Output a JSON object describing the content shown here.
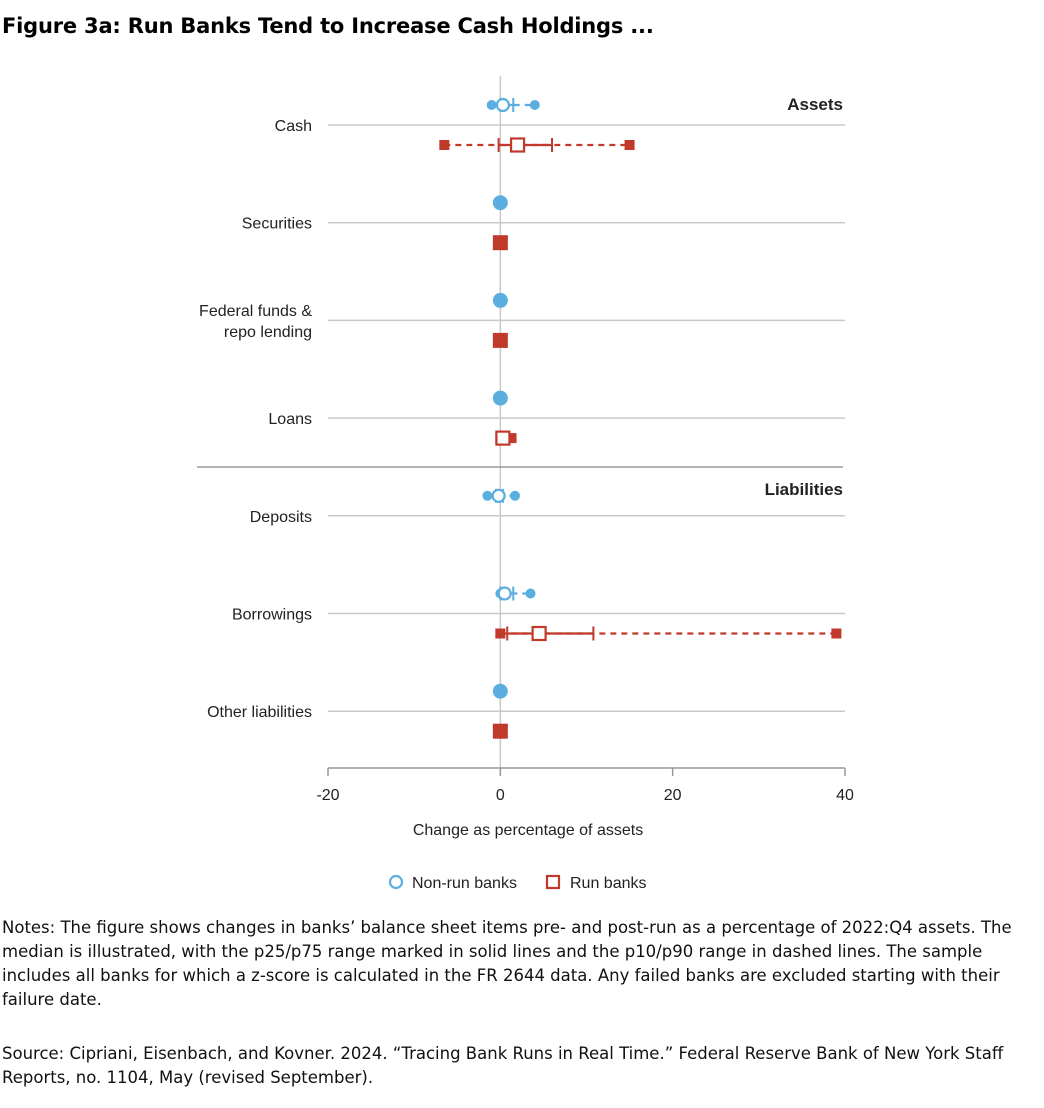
{
  "title": "Figure 3a: Run Banks Tend to Increase Cash Holdings ...",
  "notes": "Notes: The figure shows changes in banks’ balance sheet items pre- and post-run as a percentage of 2022:Q4 assets. The median is illustrated, with the p25/p75 range marked in solid lines and the p10/p90 range in dashed lines. The sample includes all banks for which a z-score is calculated in the FR 2644 data. Any failed banks are excluded starting with their failure date.",
  "source": "Source: Cipriani, Eisenbach, and Kovner. 2024. “Tracing Bank Runs in Real Time.” Federal Reserve Bank of New York Staff Reports, no. 1104, May (revised September).",
  "colors": {
    "nonrun": "#5aaee0",
    "run": "#c0392b",
    "grid": "#c8c8c8",
    "axis": "#999999"
  },
  "chart_data": {
    "type": "range-dot",
    "xlabel": "Change as percentage of assets",
    "xlim": [
      -20,
      40
    ],
    "xticks": [
      -20,
      0,
      20,
      40
    ],
    "sections": [
      "Assets",
      "Liabilities"
    ],
    "categories": [
      {
        "label": [
          "Cash"
        ],
        "section": "Assets",
        "nonrun": {
          "p10": -1,
          "p25": 0,
          "median": 0.3,
          "p75": 1.5,
          "p90": 4
        },
        "run": {
          "p10": -6.5,
          "p25": -0.2,
          "median": 2,
          "p75": 6,
          "p90": 15
        }
      },
      {
        "label": [
          "Securities"
        ],
        "section": "Assets",
        "nonrun": {
          "p10": 0,
          "p25": 0,
          "median": 0,
          "p75": 0,
          "p90": 0
        },
        "run": {
          "p10": 0,
          "p25": 0,
          "median": 0,
          "p75": 0,
          "p90": 0
        }
      },
      {
        "label": [
          "Federal funds &",
          "repo lending"
        ],
        "section": "Assets",
        "nonrun": {
          "p10": 0,
          "p25": 0,
          "median": 0,
          "p75": 0,
          "p90": 0
        },
        "run": {
          "p10": 0,
          "p25": 0,
          "median": 0,
          "p75": 0,
          "p90": 0
        }
      },
      {
        "label": [
          "Loans"
        ],
        "section": "Assets",
        "nonrun": {
          "p10": 0,
          "p25": 0,
          "median": 0,
          "p75": 0,
          "p90": 0
        },
        "run": {
          "p10": 0,
          "p25": 0,
          "median": 0.3,
          "p75": 0.8,
          "p90": 1.3
        }
      },
      {
        "label": [
          "Deposits"
        ],
        "section": "Liabilities",
        "nonrun": {
          "p10": -1.5,
          "p25": -0.5,
          "median": -0.2,
          "p75": 0.3,
          "p90": 1.7
        }
      },
      {
        "label": [
          "Borrowings"
        ],
        "section": "Liabilities",
        "nonrun": {
          "p10": 0,
          "p25": 0,
          "median": 0.5,
          "p75": 1.5,
          "p90": 3.5
        },
        "run": {
          "p10": 0,
          "p25": 0.8,
          "median": 4.5,
          "p75": 10.8,
          "p90": 39
        }
      },
      {
        "label": [
          "Other liabilities"
        ],
        "section": "Liabilities",
        "nonrun": {
          "p10": 0,
          "p25": 0,
          "median": 0,
          "p75": 0,
          "p90": 0
        },
        "run": {
          "p10": 0,
          "p25": 0,
          "median": 0,
          "p75": 0,
          "p90": 0
        }
      }
    ],
    "legend": [
      {
        "name": "Non-run banks",
        "marker": "circle-open",
        "color": "#5aaee0"
      },
      {
        "name": "Run banks",
        "marker": "square-open",
        "color": "#c0392b"
      }
    ]
  }
}
